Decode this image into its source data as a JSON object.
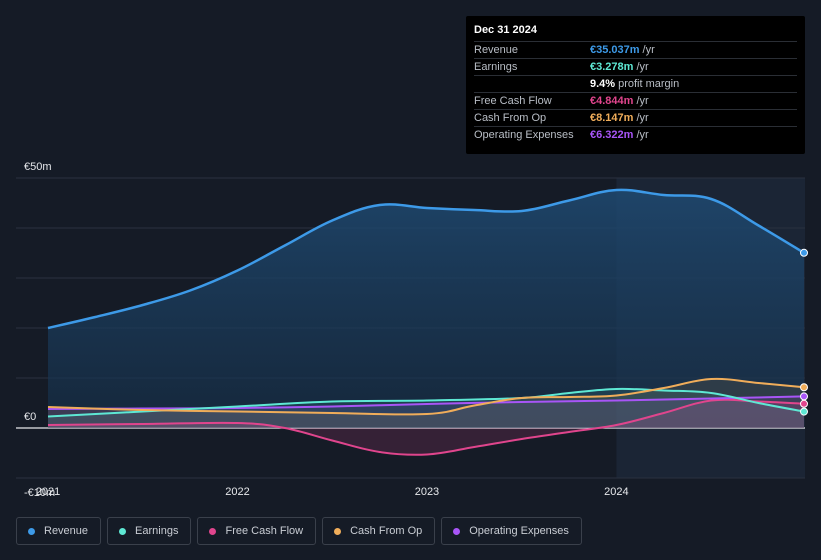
{
  "tooltip": {
    "date": "Dec 31 2024",
    "rows": [
      {
        "label": "Revenue",
        "value": "€35.037m",
        "unit": "/yr",
        "color": "#3d9ae8"
      },
      {
        "label": "Earnings",
        "value": "€3.278m",
        "unit": "/yr",
        "color": "#5ee8d4"
      },
      {
        "label": "",
        "value": "9.4%",
        "unit": "profit margin",
        "color": "#ffffff"
      },
      {
        "label": "Free Cash Flow",
        "value": "€4.844m",
        "unit": "/yr",
        "color": "#e0458d"
      },
      {
        "label": "Cash From Op",
        "value": "€8.147m",
        "unit": "/yr",
        "color": "#f0ad5a"
      },
      {
        "label": "Operating Expenses",
        "value": "€6.322m",
        "unit": "/yr",
        "color": "#a855f7"
      }
    ]
  },
  "legend": [
    {
      "label": "Revenue",
      "color": "#3d9ae8"
    },
    {
      "label": "Earnings",
      "color": "#5ee8d4"
    },
    {
      "label": "Free Cash Flow",
      "color": "#e0458d"
    },
    {
      "label": "Cash From Op",
      "color": "#f0ad5a"
    },
    {
      "label": "Operating Expenses",
      "color": "#a855f7"
    }
  ],
  "chart_data": {
    "type": "area",
    "title": "",
    "xlabel": "",
    "ylabel": "",
    "ylim": [
      -10,
      50
    ],
    "xlim": [
      2021.0,
      2024.99
    ],
    "past_data_start": 2024.0,
    "y_tick_labels": [
      {
        "value": 50,
        "label": "€50m"
      },
      {
        "value": 0,
        "label": "€0"
      },
      {
        "value": -10,
        "label": "-€10m"
      }
    ],
    "x_tick_labels": [
      {
        "value": 2021,
        "label": "2021"
      },
      {
        "value": 2022,
        "label": "2022"
      },
      {
        "value": 2023,
        "label": "2023"
      },
      {
        "value": 2024,
        "label": "2024"
      }
    ],
    "series": [
      {
        "name": "Revenue",
        "color": "#3d9ae8",
        "x": [
          2021.0,
          2021.25,
          2021.5,
          2021.75,
          2022.0,
          2022.25,
          2022.5,
          2022.75,
          2023.0,
          2023.25,
          2023.5,
          2023.75,
          2024.0,
          2024.25,
          2024.5,
          2024.75,
          2024.99
        ],
        "values": [
          20.0,
          22.2,
          24.6,
          27.5,
          31.5,
          36.5,
          41.5,
          44.6,
          44.0,
          43.6,
          43.4,
          45.5,
          47.6,
          46.6,
          45.8,
          40.5,
          35.04
        ]
      },
      {
        "name": "Earnings",
        "color": "#5ee8d4",
        "x": [
          2021.0,
          2021.5,
          2022.0,
          2022.5,
          2023.0,
          2023.5,
          2023.75,
          2024.0,
          2024.25,
          2024.5,
          2024.75,
          2024.99
        ],
        "values": [
          2.3,
          3.3,
          4.3,
          5.3,
          5.5,
          6.0,
          7.0,
          7.8,
          7.5,
          7.0,
          5.0,
          3.28
        ]
      },
      {
        "name": "Free Cash Flow",
        "color": "#e0458d",
        "x": [
          2021.0,
          2021.5,
          2022.0,
          2022.25,
          2022.5,
          2022.75,
          2023.0,
          2023.25,
          2023.5,
          2023.75,
          2024.0,
          2024.25,
          2024.5,
          2024.75,
          2024.99
        ],
        "values": [
          0.6,
          0.8,
          1.0,
          0.0,
          -2.5,
          -4.8,
          -5.3,
          -3.8,
          -2.2,
          -0.8,
          0.6,
          3.0,
          5.5,
          5.3,
          4.84
        ]
      },
      {
        "name": "Cash From Op",
        "color": "#f0ad5a",
        "x": [
          2021.0,
          2021.5,
          2022.0,
          2022.5,
          2023.0,
          2023.25,
          2023.5,
          2023.75,
          2024.0,
          2024.25,
          2024.5,
          2024.75,
          2024.99
        ],
        "values": [
          4.2,
          3.6,
          3.3,
          3.0,
          2.8,
          4.5,
          6.0,
          6.2,
          6.5,
          8.0,
          9.8,
          9.0,
          8.15
        ]
      },
      {
        "name": "Operating Expenses",
        "color": "#a855f7",
        "x": [
          2021.0,
          2021.5,
          2022.0,
          2022.5,
          2023.0,
          2023.5,
          2024.0,
          2024.5,
          2024.99
        ],
        "values": [
          3.8,
          3.9,
          4.0,
          4.3,
          4.8,
          5.2,
          5.5,
          5.9,
          6.32
        ]
      }
    ]
  }
}
